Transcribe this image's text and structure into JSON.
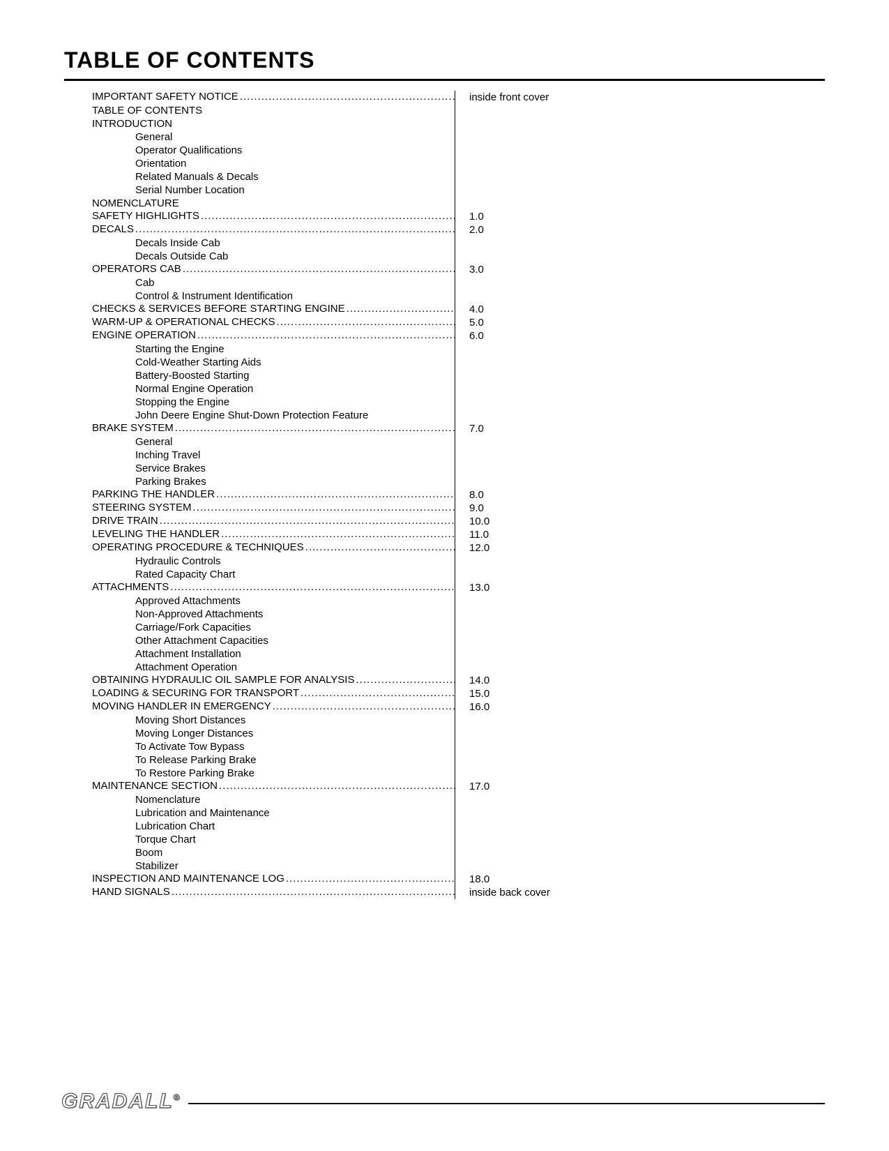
{
  "title": "TABLE OF CONTENTS",
  "logo": "GRADALL",
  "logo_reg": "®",
  "dots": "...................................................................................................................",
  "toc": [
    {
      "type": "main",
      "label": "IMPORTANT SAFETY NOTICE",
      "dotted": true,
      "page": "inside front cover"
    },
    {
      "type": "main",
      "label": "TABLE OF CONTENTS",
      "dotted": false,
      "page": ""
    },
    {
      "type": "main",
      "label": "INTRODUCTION",
      "dotted": false,
      "page": ""
    },
    {
      "type": "sub",
      "label": "General"
    },
    {
      "type": "sub",
      "label": "Operator Qualifications"
    },
    {
      "type": "sub",
      "label": "Orientation"
    },
    {
      "type": "sub",
      "label": "Related Manuals & Decals"
    },
    {
      "type": "sub",
      "label": "Serial Number Location"
    },
    {
      "type": "main",
      "label": "NOMENCLATURE",
      "dotted": false,
      "page": ""
    },
    {
      "type": "main",
      "label": "SAFETY HIGHLIGHTS",
      "dotted": true,
      "page": "1.0"
    },
    {
      "type": "main",
      "label": "DECALS",
      "dotted": true,
      "page": "2.0"
    },
    {
      "type": "sub",
      "label": "Decals Inside Cab"
    },
    {
      "type": "sub",
      "label": "Decals Outside Cab"
    },
    {
      "type": "main",
      "label": "OPERATORS CAB",
      "dotted": true,
      "page": "3.0"
    },
    {
      "type": "sub",
      "label": "Cab"
    },
    {
      "type": "sub",
      "label": "Control & Instrument Identification"
    },
    {
      "type": "main",
      "label": "CHECKS & SERVICES BEFORE STARTING ENGINE",
      "dotted": true,
      "page": "4.0"
    },
    {
      "type": "main",
      "label": "WARM-UP & OPERATIONAL CHECKS",
      "dotted": true,
      "page": "5.0"
    },
    {
      "type": "main",
      "label": "ENGINE OPERATION",
      "dotted": true,
      "page": "6.0"
    },
    {
      "type": "sub",
      "label": "Starting the Engine"
    },
    {
      "type": "sub",
      "label": "Cold-Weather Starting Aids"
    },
    {
      "type": "sub",
      "label": "Battery-Boosted Starting"
    },
    {
      "type": "sub",
      "label": "Normal Engine Operation"
    },
    {
      "type": "sub",
      "label": "Stopping the Engine"
    },
    {
      "type": "sub",
      "label": "John Deere Engine Shut-Down Protection Feature"
    },
    {
      "type": "main",
      "label": "BRAKE SYSTEM",
      "dotted": true,
      "page": "7.0"
    },
    {
      "type": "sub",
      "label": "General"
    },
    {
      "type": "sub",
      "label": "Inching Travel"
    },
    {
      "type": "sub",
      "label": "Service Brakes"
    },
    {
      "type": "sub",
      "label": "Parking Brakes"
    },
    {
      "type": "main",
      "label": "PARKING THE HANDLER",
      "dotted": true,
      "page": "8.0"
    },
    {
      "type": "main",
      "label": "STEERING SYSTEM",
      "dotted": true,
      "page": "9.0"
    },
    {
      "type": "main",
      "label": "DRIVE TRAIN",
      "dotted": true,
      "page": "10.0"
    },
    {
      "type": "main",
      "label": "LEVELING THE HANDLER",
      "dotted": true,
      "page": "11.0"
    },
    {
      "type": "main",
      "label": "OPERATING PROCEDURE & TECHNIQUES",
      "dotted": true,
      "page": "12.0"
    },
    {
      "type": "sub",
      "label": "Hydraulic Controls"
    },
    {
      "type": "sub",
      "label": "Rated Capacity Chart"
    },
    {
      "type": "main",
      "label": "ATTACHMENTS",
      "dotted": true,
      "page": "13.0"
    },
    {
      "type": "sub",
      "label": "Approved Attachments"
    },
    {
      "type": "sub",
      "label": "Non-Approved Attachments"
    },
    {
      "type": "sub",
      "label": "Carriage/Fork Capacities"
    },
    {
      "type": "sub",
      "label": "Other Attachment Capacities"
    },
    {
      "type": "sub",
      "label": "Attachment Installation"
    },
    {
      "type": "sub",
      "label": "Attachment Operation"
    },
    {
      "type": "main",
      "label": "OBTAINING HYDRAULIC OIL SAMPLE FOR ANALYSIS",
      "dotted": true,
      "page": "14.0"
    },
    {
      "type": "main",
      "label": "LOADING & SECURING FOR TRANSPORT",
      "dotted": true,
      "page": "15.0"
    },
    {
      "type": "main",
      "label": "MOVING HANDLER IN EMERGENCY",
      "dotted": true,
      "page": "16.0"
    },
    {
      "type": "sub",
      "label": "Moving Short Distances"
    },
    {
      "type": "sub",
      "label": "Moving Longer Distances"
    },
    {
      "type": "sub",
      "label": "To Activate Tow Bypass"
    },
    {
      "type": "sub",
      "label": "To Release Parking Brake"
    },
    {
      "type": "sub",
      "label": "To Restore Parking Brake"
    },
    {
      "type": "main",
      "label": "MAINTENANCE SECTION",
      "dotted": true,
      "page": "17.0"
    },
    {
      "type": "sub",
      "label": "Nomenclature"
    },
    {
      "type": "sub",
      "label": "Lubrication and Maintenance"
    },
    {
      "type": "sub",
      "label": "Lubrication Chart"
    },
    {
      "type": "sub",
      "label": "Torque Chart"
    },
    {
      "type": "sub",
      "label": "Boom"
    },
    {
      "type": "sub",
      "label": "Stabilizer"
    },
    {
      "type": "main",
      "label": "INSPECTION AND MAINTENANCE LOG",
      "dotted": true,
      "page": "18.0"
    },
    {
      "type": "main",
      "label": "HAND SIGNALS",
      "dotted": true,
      "page": "inside back cover"
    }
  ]
}
